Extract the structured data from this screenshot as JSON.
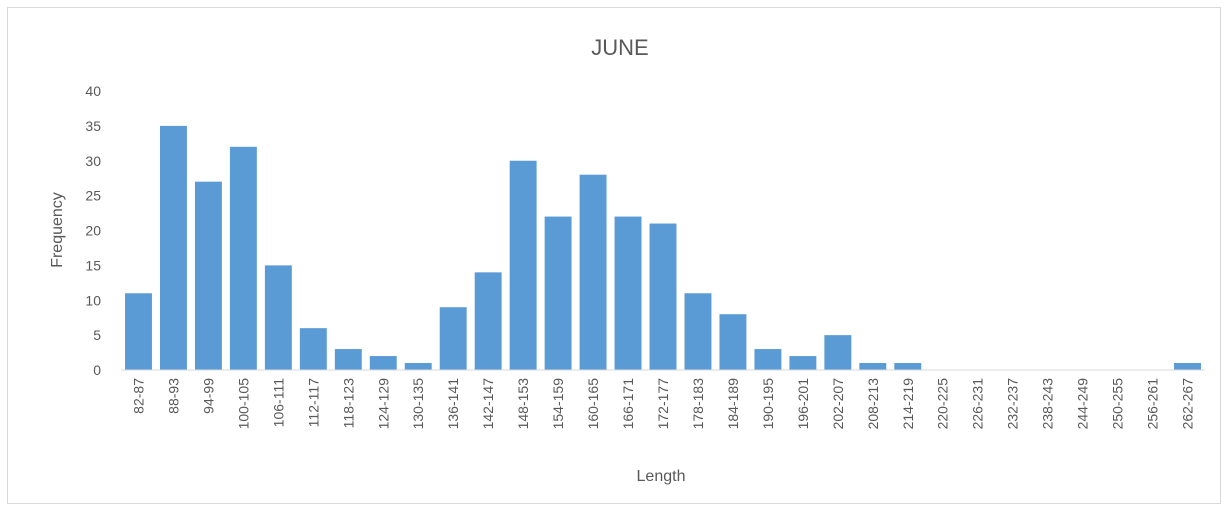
{
  "chart_data": {
    "type": "bar",
    "title": "JUNE",
    "xlabel": "Length",
    "ylabel": "Frequency",
    "ylim": [
      0,
      40
    ],
    "yticks": [
      0,
      5,
      10,
      15,
      20,
      25,
      30,
      35,
      40
    ],
    "grid": false,
    "legend": "none",
    "bar_color": "#5b9bd5",
    "categories": [
      "82-87",
      "88-93",
      "94-99",
      "100-105",
      "106-111",
      "112-117",
      "118-123",
      "124-129",
      "130-135",
      "136-141",
      "142-147",
      "148-153",
      "154-159",
      "160-165",
      "166-171",
      "172-177",
      "178-183",
      "184-189",
      "190-195",
      "196-201",
      "202-207",
      "208-213",
      "214-219",
      "220-225",
      "226-231",
      "232-237",
      "238-243",
      "244-249",
      "250-255",
      "256-261",
      "262-267"
    ],
    "values": [
      11,
      35,
      27,
      32,
      15,
      6,
      3,
      2,
      1,
      9,
      14,
      30,
      22,
      28,
      22,
      21,
      11,
      8,
      3,
      2,
      5,
      1,
      1,
      0,
      0,
      0,
      0,
      0,
      0,
      0,
      1
    ]
  }
}
